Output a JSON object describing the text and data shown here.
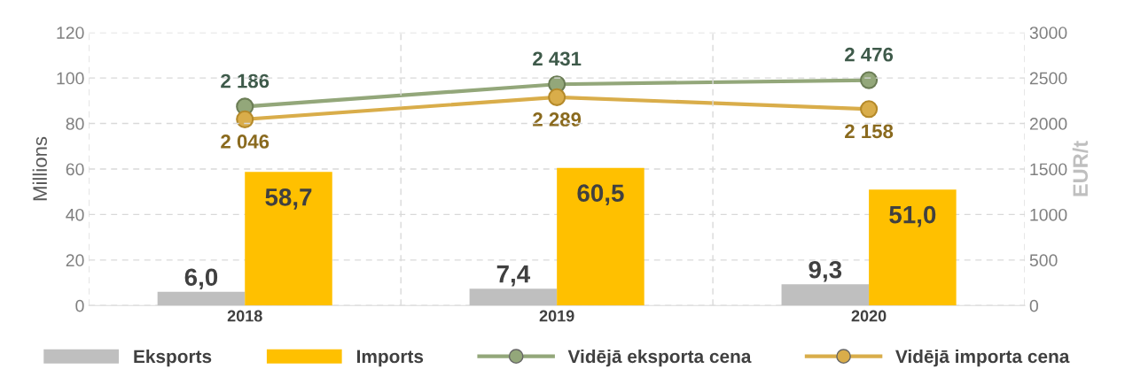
{
  "chart_data": {
    "type": "bar",
    "ylabel": "Millions",
    "y2label": "EUR/t",
    "categories": [
      "2018",
      "2019",
      "2020"
    ],
    "series": [
      {
        "name": "Eksports",
        "color": "#bfbfbf",
        "values": [
          6.0,
          7.4,
          9.3
        ],
        "value_labels": [
          "6,0",
          "7,4",
          "9,3"
        ]
      },
      {
        "name": "Imports",
        "color": "#ffc000",
        "values": [
          58.7,
          60.5,
          51.0
        ],
        "value_labels": [
          "58,7",
          "60,5",
          "51,0"
        ]
      },
      {
        "name": "Vidējā eksporta cena",
        "type": "line",
        "axis": "y2",
        "color": "#93a77a",
        "values": [
          2186,
          2431,
          2476
        ],
        "value_labels": [
          "2 186",
          "2 431",
          "2 476"
        ]
      },
      {
        "name": "Vidējā importa cena",
        "type": "line",
        "axis": "y2",
        "color": "#d9ad4a",
        "values": [
          2046,
          2289,
          2158
        ],
        "value_labels": [
          "2 046",
          "2 289",
          "2 158"
        ]
      }
    ],
    "ylim": [
      0,
      120
    ],
    "yticks": [
      0,
      20,
      40,
      60,
      80,
      100,
      120
    ],
    "y2lim": [
      0,
      3000
    ],
    "y2ticks": [
      0,
      500,
      1000,
      1500,
      2000,
      2500,
      3000
    ],
    "grid": true,
    "legend": "bottom",
    "marker": "circle",
    "line_style": "solid"
  }
}
